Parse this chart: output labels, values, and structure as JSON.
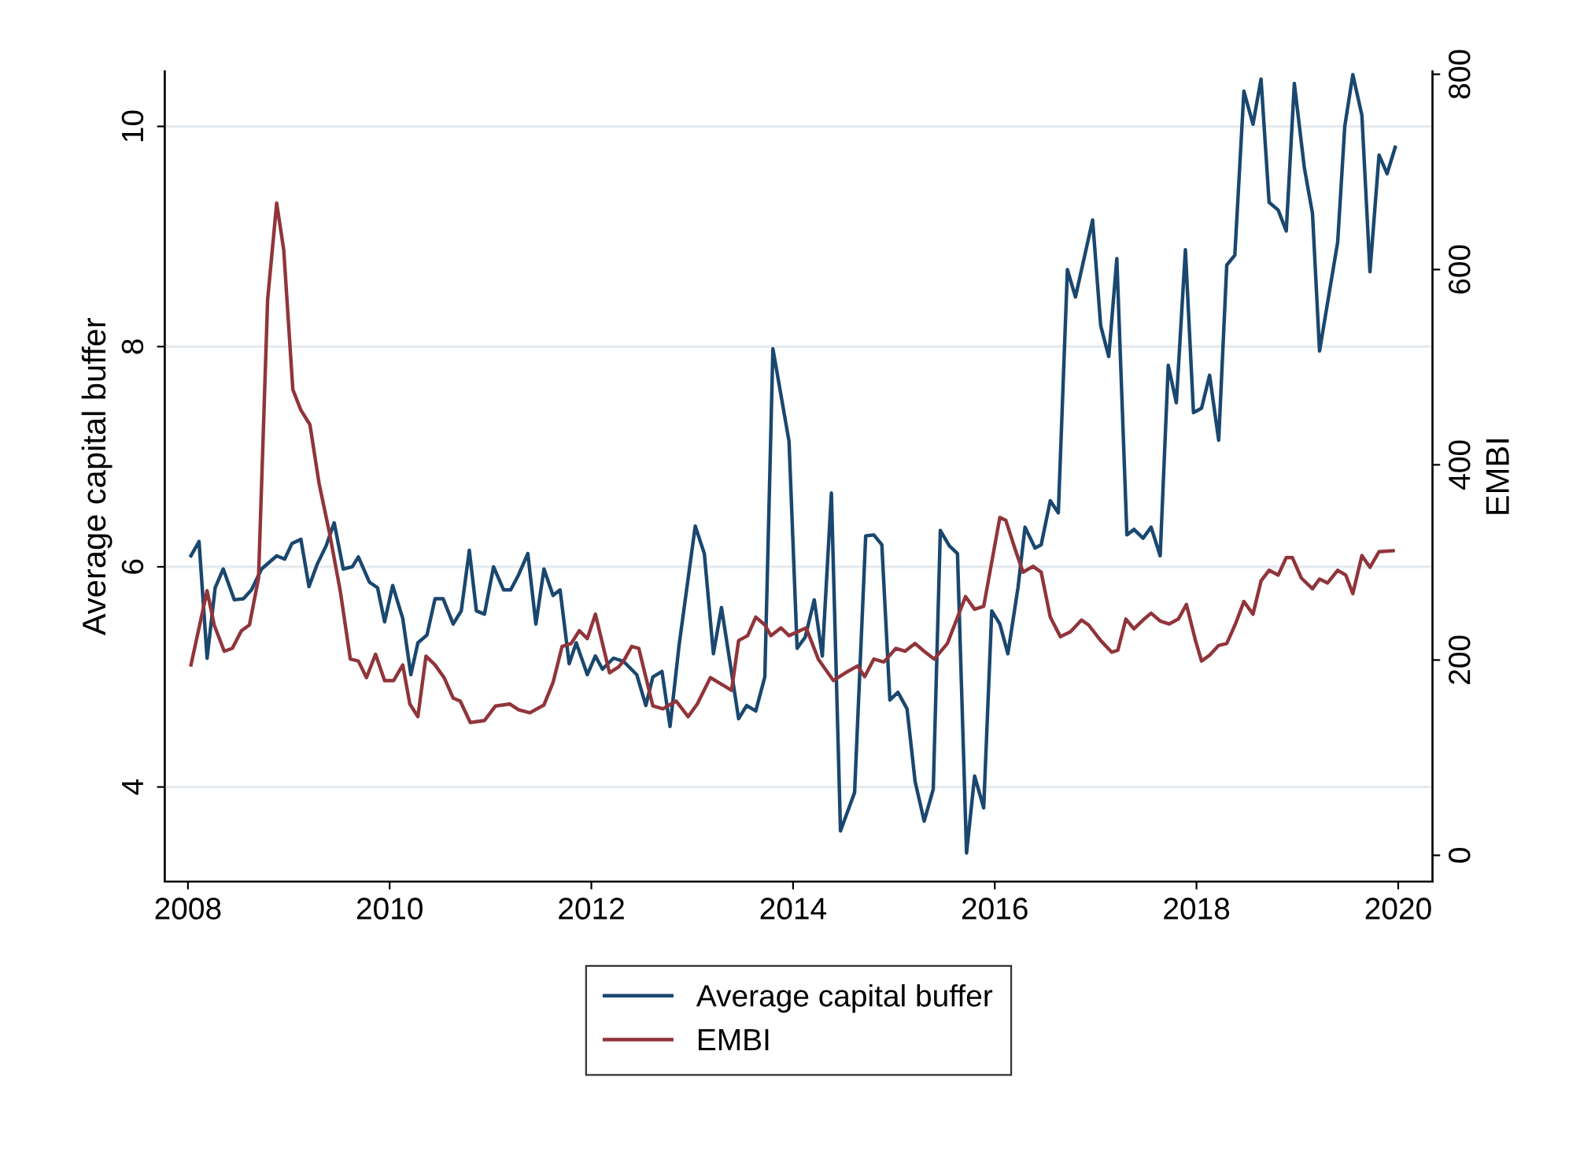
{
  "chart_data": {
    "type": "line",
    "ylabel": "Average capital buffer",
    "y2label": "EMBI",
    "xlim": [
      2007.77,
      2020.34
    ],
    "xticks": [
      2008,
      2010,
      2012,
      2014,
      2016,
      2018,
      2020
    ],
    "ylim": [
      3.14,
      10.5
    ],
    "yticks": [
      4,
      6,
      8,
      10
    ],
    "y2lim": [
      -27,
      803
    ],
    "y2ticks": [
      0,
      200,
      400,
      600,
      800
    ],
    "grid": "y",
    "legend": "bottom",
    "line_style": "solid",
    "marker": "none",
    "series": [
      {
        "name": "Average capital buffer",
        "color": "#1a476f",
        "x": [
          2008.03,
          2008.11,
          2008.19,
          2008.27,
          2008.35,
          2008.46,
          2008.55,
          2008.63,
          2008.73,
          2008.88,
          2008.96,
          2009.03,
          2009.12,
          2009.2,
          2009.28,
          2009.37,
          2009.45,
          2009.54,
          2009.63,
          2009.69,
          2009.8,
          2009.88,
          2009.95,
          2010.03,
          2010.13,
          2010.21,
          2010.28,
          2010.37,
          2010.45,
          2010.53,
          2010.63,
          2010.71,
          2010.79,
          2010.86,
          2010.94,
          2011.03,
          2011.13,
          2011.2,
          2011.28,
          2011.37,
          2011.45,
          2011.53,
          2011.62,
          2011.69,
          2011.78,
          2011.85,
          2011.96,
          2012.04,
          2012.11,
          2012.22,
          2012.32,
          2012.45,
          2012.54,
          2012.61,
          2012.7,
          2012.78,
          2012.87,
          2013.03,
          2013.12,
          2013.21,
          2013.29,
          2013.38,
          2013.46,
          2013.54,
          2013.63,
          2013.72,
          2013.8,
          2013.96,
          2014.04,
          2014.12,
          2014.21,
          2014.29,
          2014.38,
          2014.47,
          2014.61,
          2014.72,
          2014.8,
          2014.88,
          2014.96,
          2015.04,
          2015.13,
          2015.21,
          2015.3,
          2015.39,
          2015.46,
          2015.55,
          2015.63,
          2015.72,
          2015.8,
          2015.89,
          2015.97,
          2016.05,
          2016.13,
          2016.23,
          2016.3,
          2016.4,
          2016.46,
          2016.55,
          2016.63,
          2016.72,
          2016.8,
          2016.97,
          2017.05,
          2017.13,
          2017.21,
          2017.31,
          2017.38,
          2017.47,
          2017.55,
          2017.64,
          2017.72,
          2017.8,
          2017.89,
          2017.97,
          2018.05,
          2018.13,
          2018.22,
          2018.3,
          2018.38,
          2018.47,
          2018.56,
          2018.64,
          2018.72,
          2018.81,
          2018.89,
          2018.97,
          2019.07,
          2019.15,
          2019.22,
          2019.4,
          2019.47,
          2019.55,
          2019.64,
          2019.72,
          2019.81,
          2019.89,
          2019.97
        ],
        "values": [
          6.1,
          6.23,
          5.17,
          5.81,
          5.98,
          5.7,
          5.71,
          5.79,
          5.98,
          6.1,
          6.07,
          6.21,
          6.25,
          5.82,
          6.02,
          6.19,
          6.4,
          5.98,
          6.0,
          6.09,
          5.86,
          5.81,
          5.5,
          5.83,
          5.53,
          5.02,
          5.31,
          5.38,
          5.71,
          5.71,
          5.48,
          5.6,
          6.15,
          5.6,
          5.57,
          6.0,
          5.79,
          5.79,
          5.93,
          6.12,
          5.48,
          5.98,
          5.74,
          5.79,
          5.12,
          5.31,
          5.02,
          5.19,
          5.07,
          5.17,
          5.14,
          5.02,
          4.74,
          5.0,
          5.05,
          4.55,
          5.29,
          6.37,
          6.12,
          5.21,
          5.63,
          5.1,
          4.62,
          4.74,
          4.69,
          5.0,
          7.98,
          7.14,
          5.26,
          5.36,
          5.7,
          5.19,
          6.67,
          3.6,
          3.95,
          6.28,
          6.29,
          6.2,
          4.79,
          4.86,
          4.71,
          4.05,
          3.69,
          3.98,
          6.33,
          6.19,
          6.12,
          3.4,
          4.1,
          3.81,
          5.6,
          5.48,
          5.21,
          5.81,
          6.36,
          6.17,
          6.2,
          6.6,
          6.49,
          8.7,
          8.45,
          9.15,
          8.19,
          7.91,
          8.8,
          6.29,
          6.34,
          6.26,
          6.36,
          6.1,
          7.83,
          7.49,
          8.88,
          7.4,
          7.44,
          7.74,
          7.15,
          8.74,
          8.83,
          10.32,
          10.02,
          10.43,
          9.31,
          9.24,
          9.05,
          10.39,
          9.62,
          9.21,
          7.96,
          8.95,
          10.0,
          10.47,
          10.1,
          8.68,
          9.74,
          9.57,
          9.81
        ]
      },
      {
        "name": "EMBI",
        "color": "#90353b",
        "axis": "y2",
        "x": [
          2008.03,
          2008.19,
          2008.26,
          2008.36,
          2008.44,
          2008.53,
          2008.61,
          2008.7,
          2008.79,
          2008.88,
          2008.95,
          2009.04,
          2009.12,
          2009.21,
          2009.3,
          2009.4,
          2009.51,
          2009.61,
          2009.69,
          2009.77,
          2009.86,
          2009.95,
          2010.04,
          2010.13,
          2010.2,
          2010.28,
          2010.36,
          2010.45,
          2010.54,
          2010.63,
          2010.7,
          2010.8,
          2010.94,
          2011.05,
          2011.19,
          2011.28,
          2011.39,
          2011.53,
          2011.62,
          2011.71,
          2011.8,
          2011.88,
          2011.96,
          2012.04,
          2012.18,
          2012.27,
          2012.32,
          2012.4,
          2012.47,
          2012.61,
          2012.71,
          2012.84,
          2012.96,
          2013.05,
          2013.18,
          2013.31,
          2013.39,
          2013.46,
          2013.55,
          2013.63,
          2013.72,
          2013.78,
          2013.88,
          2013.96,
          2014.13,
          2014.25,
          2014.4,
          2014.52,
          2014.64,
          2014.71,
          2014.8,
          2014.9,
          2015.02,
          2015.11,
          2015.21,
          2015.3,
          2015.4,
          2015.53,
          2015.71,
          2015.8,
          2015.89,
          2016.05,
          2016.11,
          2016.2,
          2016.28,
          2016.38,
          2016.46,
          2016.55,
          2016.65,
          2016.75,
          2016.86,
          2016.93,
          2017.05,
          2017.16,
          2017.22,
          2017.3,
          2017.38,
          2017.47,
          2017.55,
          2017.64,
          2017.73,
          2017.82,
          2017.9,
          2017.99,
          2018.05,
          2018.13,
          2018.22,
          2018.3,
          2018.39,
          2018.47,
          2018.56,
          2018.64,
          2018.72,
          2018.81,
          2018.89,
          2018.95,
          2019.04,
          2019.15,
          2019.22,
          2019.3,
          2019.4,
          2019.48,
          2019.55,
          2019.64,
          2019.72,
          2019.81,
          2019.95
        ],
        "values": [
          195,
          271,
          236,
          209,
          212,
          230,
          236,
          284,
          569,
          668,
          620,
          477,
          456,
          441,
          381,
          332,
          271,
          201,
          199,
          182,
          206,
          179,
          179,
          195,
          155,
          142,
          204,
          195,
          182,
          161,
          158,
          136,
          138,
          153,
          155,
          149,
          146,
          154,
          177,
          214,
          217,
          230,
          222,
          247,
          187,
          193,
          199,
          214,
          212,
          153,
          150,
          158,
          142,
          155,
          182,
          174,
          169,
          220,
          225,
          244,
          236,
          225,
          233,
          225,
          233,
          201,
          179,
          187,
          194,
          183,
          201,
          198,
          212,
          209,
          217,
          209,
          201,
          217,
          265,
          252,
          255,
          346,
          343,
          314,
          290,
          296,
          290,
          244,
          224,
          229,
          241,
          236,
          220,
          208,
          210,
          242,
          232,
          241,
          248,
          240,
          237,
          242,
          257,
          220,
          199,
          205,
          215,
          217,
          238,
          260,
          247,
          281,
          292,
          287,
          305,
          305,
          284,
          273,
          283,
          279,
          292,
          287,
          268,
          307,
          295,
          311,
          312
        ]
      }
    ]
  }
}
